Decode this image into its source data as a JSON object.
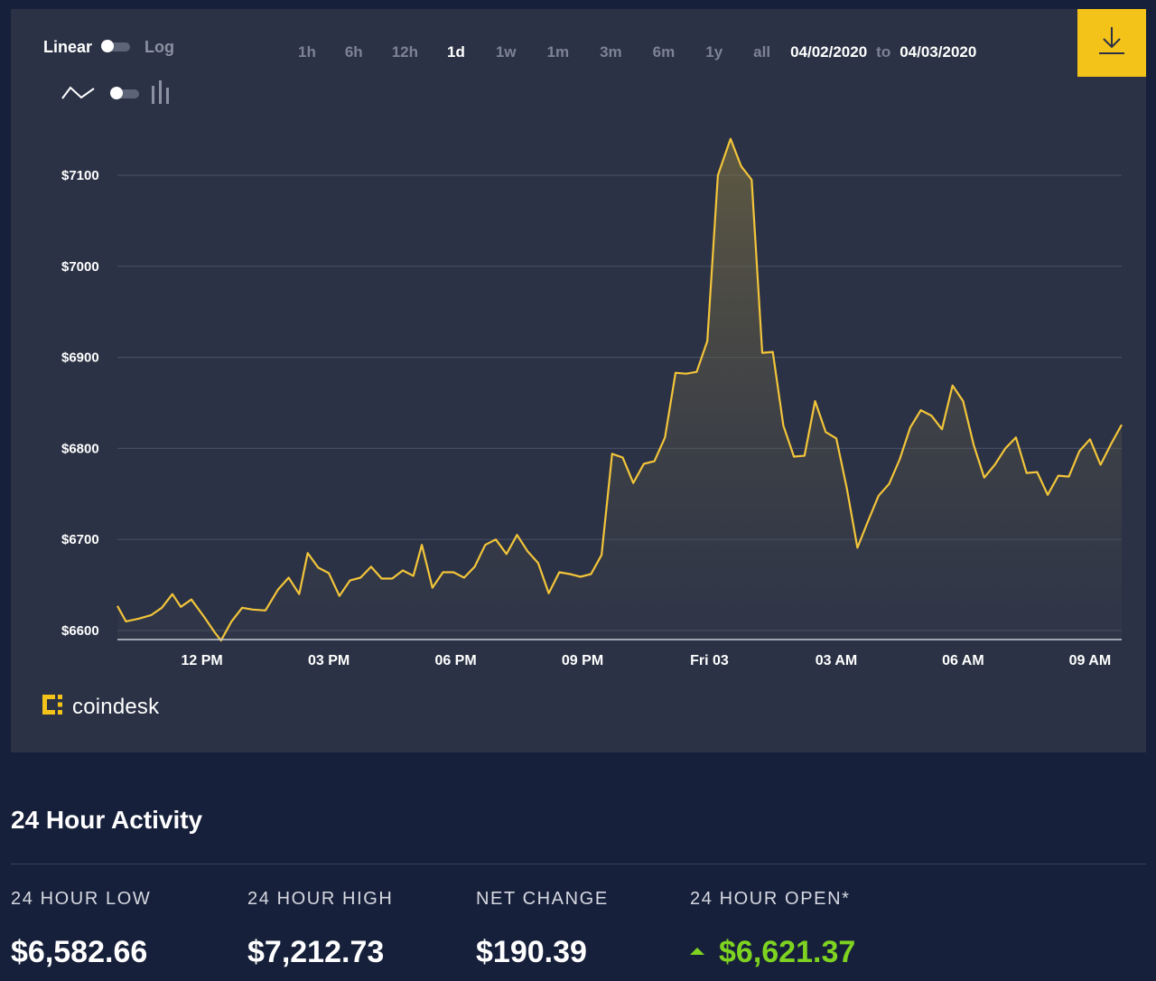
{
  "chart_controls": {
    "scale_linear_label": "Linear",
    "scale_log_label": "Log",
    "ranges": [
      "1h",
      "6h",
      "12h",
      "1d",
      "1w",
      "1m",
      "3m",
      "6m",
      "1y",
      "all"
    ],
    "active_range": "1d",
    "date_from": "04/02/2020",
    "date_to_word": "to",
    "date_to": "04/03/2020",
    "download_icon": "download-icon"
  },
  "brand": {
    "logo_text": "coindesk",
    "accent_color": "#f4c31a",
    "line_color": "#f3c53a",
    "positive_color": "#7ed321"
  },
  "chart_data": {
    "type": "area",
    "y_tick_labels": [
      "$7100",
      "$7000",
      "$6900",
      "$6800",
      "$6700",
      "$6600"
    ],
    "y_ticks": [
      7100,
      7000,
      6900,
      6800,
      6700,
      6600
    ],
    "ylim": [
      6590,
      7140
    ],
    "x_tick_labels": [
      "12 PM",
      "03 PM",
      "06 PM",
      "09 PM",
      "Fri 03",
      "03 AM",
      "06 AM",
      "09 AM"
    ],
    "x_tick_hours": [
      12,
      15,
      18,
      21,
      24,
      27,
      30,
      33
    ],
    "xlim": [
      10,
      33.75
    ],
    "grid": true,
    "values": [
      [
        10.0,
        6627
      ],
      [
        10.2,
        6610
      ],
      [
        10.5,
        6613
      ],
      [
        10.8,
        6617
      ],
      [
        11.05,
        6625
      ],
      [
        11.3,
        6640
      ],
      [
        11.5,
        6626
      ],
      [
        11.75,
        6634
      ],
      [
        12.05,
        6615
      ],
      [
        12.3,
        6598
      ],
      [
        12.45,
        6589
      ],
      [
        12.7,
        6610
      ],
      [
        12.95,
        6625
      ],
      [
        13.2,
        6623
      ],
      [
        13.5,
        6622
      ],
      [
        13.8,
        6645
      ],
      [
        14.05,
        6658
      ],
      [
        14.3,
        6640
      ],
      [
        14.5,
        6685
      ],
      [
        14.75,
        6669
      ],
      [
        15.0,
        6663
      ],
      [
        15.25,
        6638
      ],
      [
        15.5,
        6655
      ],
      [
        15.75,
        6658
      ],
      [
        16.0,
        6670
      ],
      [
        16.25,
        6657
      ],
      [
        16.5,
        6657
      ],
      [
        16.75,
        6666
      ],
      [
        17.0,
        6660
      ],
      [
        17.2,
        6694
      ],
      [
        17.45,
        6647
      ],
      [
        17.7,
        6664
      ],
      [
        17.95,
        6664
      ],
      [
        18.2,
        6658
      ],
      [
        18.45,
        6670
      ],
      [
        18.7,
        6694
      ],
      [
        18.95,
        6700
      ],
      [
        19.2,
        6684
      ],
      [
        19.45,
        6705
      ],
      [
        19.7,
        6687
      ],
      [
        19.95,
        6674
      ],
      [
        20.2,
        6641
      ],
      [
        20.45,
        6664
      ],
      [
        20.7,
        6662
      ],
      [
        20.95,
        6659
      ],
      [
        21.2,
        6662
      ],
      [
        21.45,
        6683
      ],
      [
        21.7,
        6794
      ],
      [
        21.95,
        6790
      ],
      [
        22.2,
        6762
      ],
      [
        22.45,
        6783
      ],
      [
        22.7,
        6786
      ],
      [
        22.95,
        6812
      ],
      [
        23.2,
        6883
      ],
      [
        23.45,
        6882
      ],
      [
        23.7,
        6884
      ],
      [
        23.95,
        6918
      ],
      [
        24.2,
        7100
      ],
      [
        24.5,
        7140
      ],
      [
        24.75,
        7110
      ],
      [
        25.0,
        7095
      ],
      [
        25.25,
        6905
      ],
      [
        25.5,
        6906
      ],
      [
        25.75,
        6825
      ],
      [
        26.0,
        6791
      ],
      [
        26.25,
        6792
      ],
      [
        26.5,
        6852
      ],
      [
        26.75,
        6818
      ],
      [
        27.0,
        6811
      ],
      [
        27.25,
        6756
      ],
      [
        27.5,
        6691
      ],
      [
        27.75,
        6720
      ],
      [
        28.0,
        6748
      ],
      [
        28.25,
        6761
      ],
      [
        28.5,
        6788
      ],
      [
        28.75,
        6823
      ],
      [
        29.0,
        6842
      ],
      [
        29.25,
        6836
      ],
      [
        29.5,
        6821
      ],
      [
        29.75,
        6869
      ],
      [
        30.0,
        6852
      ],
      [
        30.25,
        6804
      ],
      [
        30.5,
        6768
      ],
      [
        30.75,
        6782
      ],
      [
        31.0,
        6800
      ],
      [
        31.25,
        6812
      ],
      [
        31.5,
        6773
      ],
      [
        31.75,
        6774
      ],
      [
        32.0,
        6749
      ],
      [
        32.25,
        6770
      ],
      [
        32.5,
        6769
      ],
      [
        32.75,
        6797
      ],
      [
        33.0,
        6810
      ],
      [
        33.25,
        6782
      ],
      [
        33.5,
        6805
      ],
      [
        33.75,
        6826
      ]
    ]
  },
  "activity": {
    "title": "24 Hour Activity",
    "stats": [
      {
        "label": "24 HOUR LOW",
        "value": "$6,582.66"
      },
      {
        "label": "24 HOUR HIGH",
        "value": "$7,212.73"
      },
      {
        "label": "NET CHANGE",
        "value": "$190.39"
      },
      {
        "label": "24 HOUR OPEN*",
        "value": "$6,621.37"
      }
    ]
  }
}
